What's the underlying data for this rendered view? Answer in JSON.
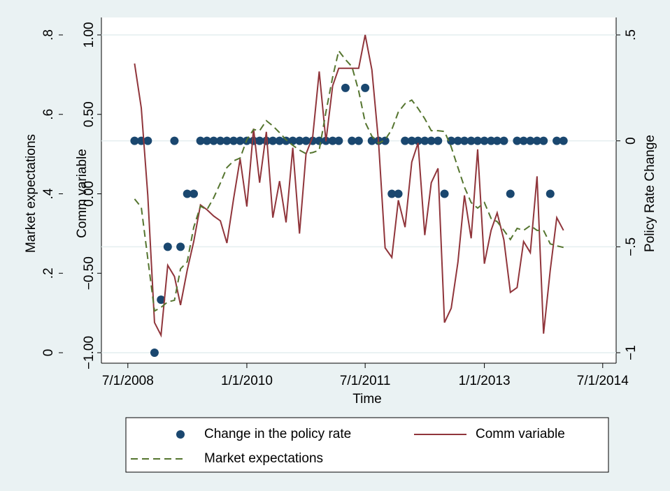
{
  "chart_data": {
    "type": "line",
    "x_title": "Time",
    "y_title": "Market expectations",
    "y2_title": "Comm variable",
    "y3_title": "Policy Rate Change",
    "x": [
      "2008-08-01",
      "2008-09-01",
      "2008-10-01",
      "2008-11-01",
      "2008-12-01",
      "2009-01-01",
      "2009-02-01",
      "2009-03-01",
      "2009-04-01",
      "2009-05-01",
      "2009-06-01",
      "2009-07-01",
      "2009-08-01",
      "2009-09-01",
      "2009-10-01",
      "2009-11-01",
      "2009-12-01",
      "2010-01-01",
      "2010-02-01",
      "2010-03-01",
      "2010-04-01",
      "2010-05-01",
      "2010-06-01",
      "2010-07-01",
      "2010-08-01",
      "2010-09-01",
      "2010-10-01",
      "2010-11-01",
      "2010-12-01",
      "2011-01-01",
      "2011-02-01",
      "2011-03-01",
      "2011-04-01",
      "2011-05-01",
      "2011-06-01",
      "2011-07-01",
      "2011-08-01",
      "2011-09-01",
      "2011-10-01",
      "2011-11-01",
      "2011-12-01",
      "2012-01-01",
      "2012-02-01",
      "2012-03-01",
      "2012-04-01",
      "2012-05-01",
      "2012-06-01",
      "2012-07-01",
      "2012-08-01",
      "2012-09-01",
      "2012-10-01",
      "2012-11-01",
      "2012-12-01",
      "2013-01-01",
      "2013-02-01",
      "2013-03-01",
      "2013-04-01",
      "2013-05-01",
      "2013-06-01",
      "2013-07-01",
      "2013-08-01",
      "2013-09-01",
      "2013-10-01",
      "2013-11-01",
      "2013-12-01",
      "2014-01-01"
    ],
    "xlim": [
      "2008-03-01",
      "2014-09-01"
    ],
    "xticks": [
      {
        "value": "2008-07-01",
        "label": "7/1/2008"
      },
      {
        "value": "2010-01-01",
        "label": "1/1/2010"
      },
      {
        "value": "2011-07-01",
        "label": "7/1/2011"
      },
      {
        "value": "2013-01-01",
        "label": "1/1/2013"
      },
      {
        "value": "2014-07-01",
        "label": "7/1/2014"
      }
    ],
    "ylim": [
      0,
      0.8
    ],
    "yticks": [
      0,
      {
        "value": 0.2,
        "label": ".2"
      },
      {
        "value": 0.4,
        "label": ".4"
      },
      {
        "value": 0.6,
        "label": ".6"
      },
      {
        "value": 0.8,
        "label": ".8"
      }
    ],
    "y2lim": [
      -1,
      1
    ],
    "y2ticks": [
      {
        "value": -1,
        "label": "−1.00"
      },
      {
        "value": -0.5,
        "label": "−0.50"
      },
      {
        "value": 0,
        "label": "0.00"
      },
      {
        "value": 0.5,
        "label": "0.50"
      },
      {
        "value": 1,
        "label": "1.00"
      }
    ],
    "y3lim": [
      -1,
      0.5
    ],
    "y3ticks": [
      {
        "value": -1,
        "label": "−1"
      },
      {
        "value": -0.5,
        "label": "−.5"
      },
      0,
      {
        "value": 0.5,
        "label": ".5"
      }
    ],
    "grid_axis": "y3",
    "legend": "bottom",
    "series": [
      {
        "name": "Change in the policy rate",
        "type": "scatter",
        "axis": "y3",
        "color": "#1a476f",
        "values": [
          0,
          0,
          0,
          -1,
          -0.75,
          -0.5,
          0,
          -0.5,
          -0.25,
          -0.25,
          0,
          0,
          0,
          0,
          0,
          0,
          0,
          0,
          0,
          0,
          0,
          0,
          0,
          0,
          0,
          0,
          0,
          0,
          0,
          0,
          0,
          0,
          0.25,
          0,
          0,
          0.25,
          0,
          0,
          0,
          -0.25,
          -0.25,
          0,
          0,
          0,
          0,
          0,
          0,
          -0.25,
          0,
          0,
          0,
          0,
          0,
          0,
          0,
          0,
          0,
          -0.25,
          0,
          0,
          0,
          0,
          0,
          -0.25,
          0,
          0
        ]
      },
      {
        "name": "Comm variable",
        "type": "line",
        "axis": "y2",
        "color": "#90353b",
        "values": [
          0.82,
          0.54,
          -0.01,
          -0.81,
          -0.89,
          -0.45,
          -0.52,
          -0.7,
          -0.48,
          -0.3,
          -0.07,
          -0.1,
          -0.14,
          -0.17,
          -0.31,
          -0.03,
          0.22,
          -0.08,
          0.41,
          0.07,
          0.39,
          -0.15,
          0.08,
          -0.18,
          0.29,
          -0.25,
          0.25,
          0.36,
          0.77,
          0.33,
          0.68,
          0.79,
          0.79,
          0.79,
          0.79,
          1.0,
          0.78,
          0.32,
          -0.34,
          -0.4,
          -0.04,
          -0.21,
          0.2,
          0.32,
          -0.26,
          0.07,
          0.16,
          -0.81,
          -0.72,
          -0.43,
          -0.01,
          -0.28,
          0.28,
          -0.44,
          -0.23,
          -0.12,
          -0.29,
          -0.62,
          -0.59,
          -0.3,
          -0.37,
          0.11,
          -0.88,
          -0.48,
          -0.15,
          -0.23
        ]
      },
      {
        "name": "Market expectations",
        "type": "line",
        "axis": "y",
        "dash": "dashed",
        "color": "#55752f",
        "values": [
          0.387,
          0.366,
          0.237,
          0.105,
          0.114,
          0.128,
          0.132,
          0.211,
          0.229,
          0.316,
          0.369,
          0.36,
          0.39,
          0.427,
          0.466,
          0.483,
          0.49,
          0.536,
          0.562,
          0.559,
          0.584,
          0.571,
          0.554,
          0.536,
          0.522,
          0.51,
          0.501,
          0.504,
          0.51,
          0.606,
          0.694,
          0.76,
          0.738,
          0.72,
          0.659,
          0.58,
          0.545,
          0.527,
          0.536,
          0.562,
          0.606,
          0.627,
          0.636,
          0.615,
          0.589,
          0.559,
          0.559,
          0.557,
          0.518,
          0.466,
          0.417,
          0.378,
          0.364,
          0.378,
          0.338,
          0.33,
          0.308,
          0.285,
          0.313,
          0.308,
          0.32,
          0.308,
          0.308,
          0.274,
          0.269,
          0.265
        ]
      }
    ]
  }
}
